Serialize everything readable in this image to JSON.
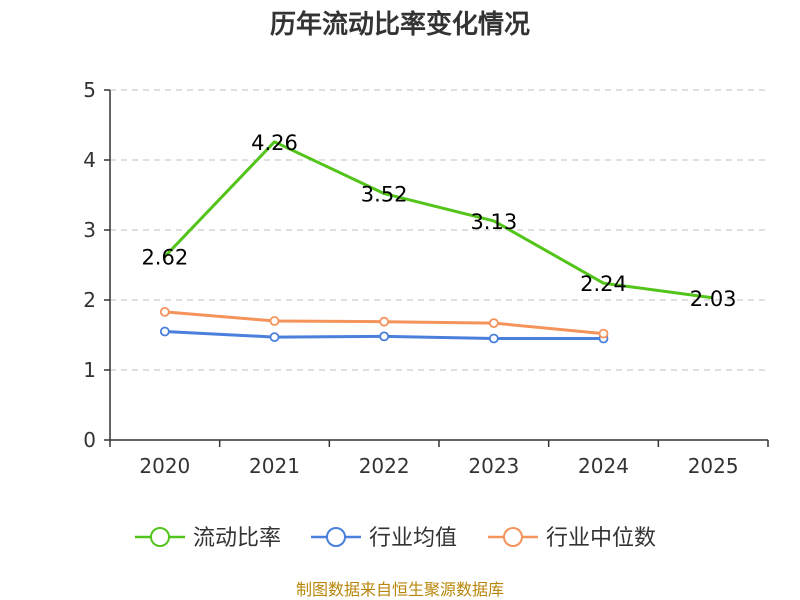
{
  "chart_data": {
    "type": "line",
    "title": "历年流动比率变化情况",
    "categories": [
      "2020",
      "2021",
      "2022",
      "2023",
      "2024",
      "2025"
    ],
    "ylim": [
      0,
      5
    ],
    "yticks": [
      0,
      1,
      2,
      3,
      4,
      5
    ],
    "grid": true,
    "legend_position": "bottom",
    "series": [
      {
        "name": "流动比率",
        "color": "#52c41a",
        "values": [
          2.62,
          4.26,
          3.52,
          3.13,
          2.24,
          2.03
        ],
        "labels": [
          "2.62",
          "4.26",
          "3.52",
          "3.13",
          "2.24",
          "2.03"
        ],
        "show_markers": false,
        "show_labels": true
      },
      {
        "name": "行业均值",
        "color": "#4a7fdc",
        "values": [
          1.55,
          1.47,
          1.48,
          1.45,
          1.45,
          null
        ],
        "show_markers": true,
        "show_labels": false
      },
      {
        "name": "行业中位数",
        "color": "#f4935a",
        "values": [
          1.83,
          1.7,
          1.69,
          1.67,
          1.52,
          null
        ],
        "show_markers": true,
        "show_labels": false
      }
    ],
    "source": "制图数据来自恒生聚源数据库"
  }
}
